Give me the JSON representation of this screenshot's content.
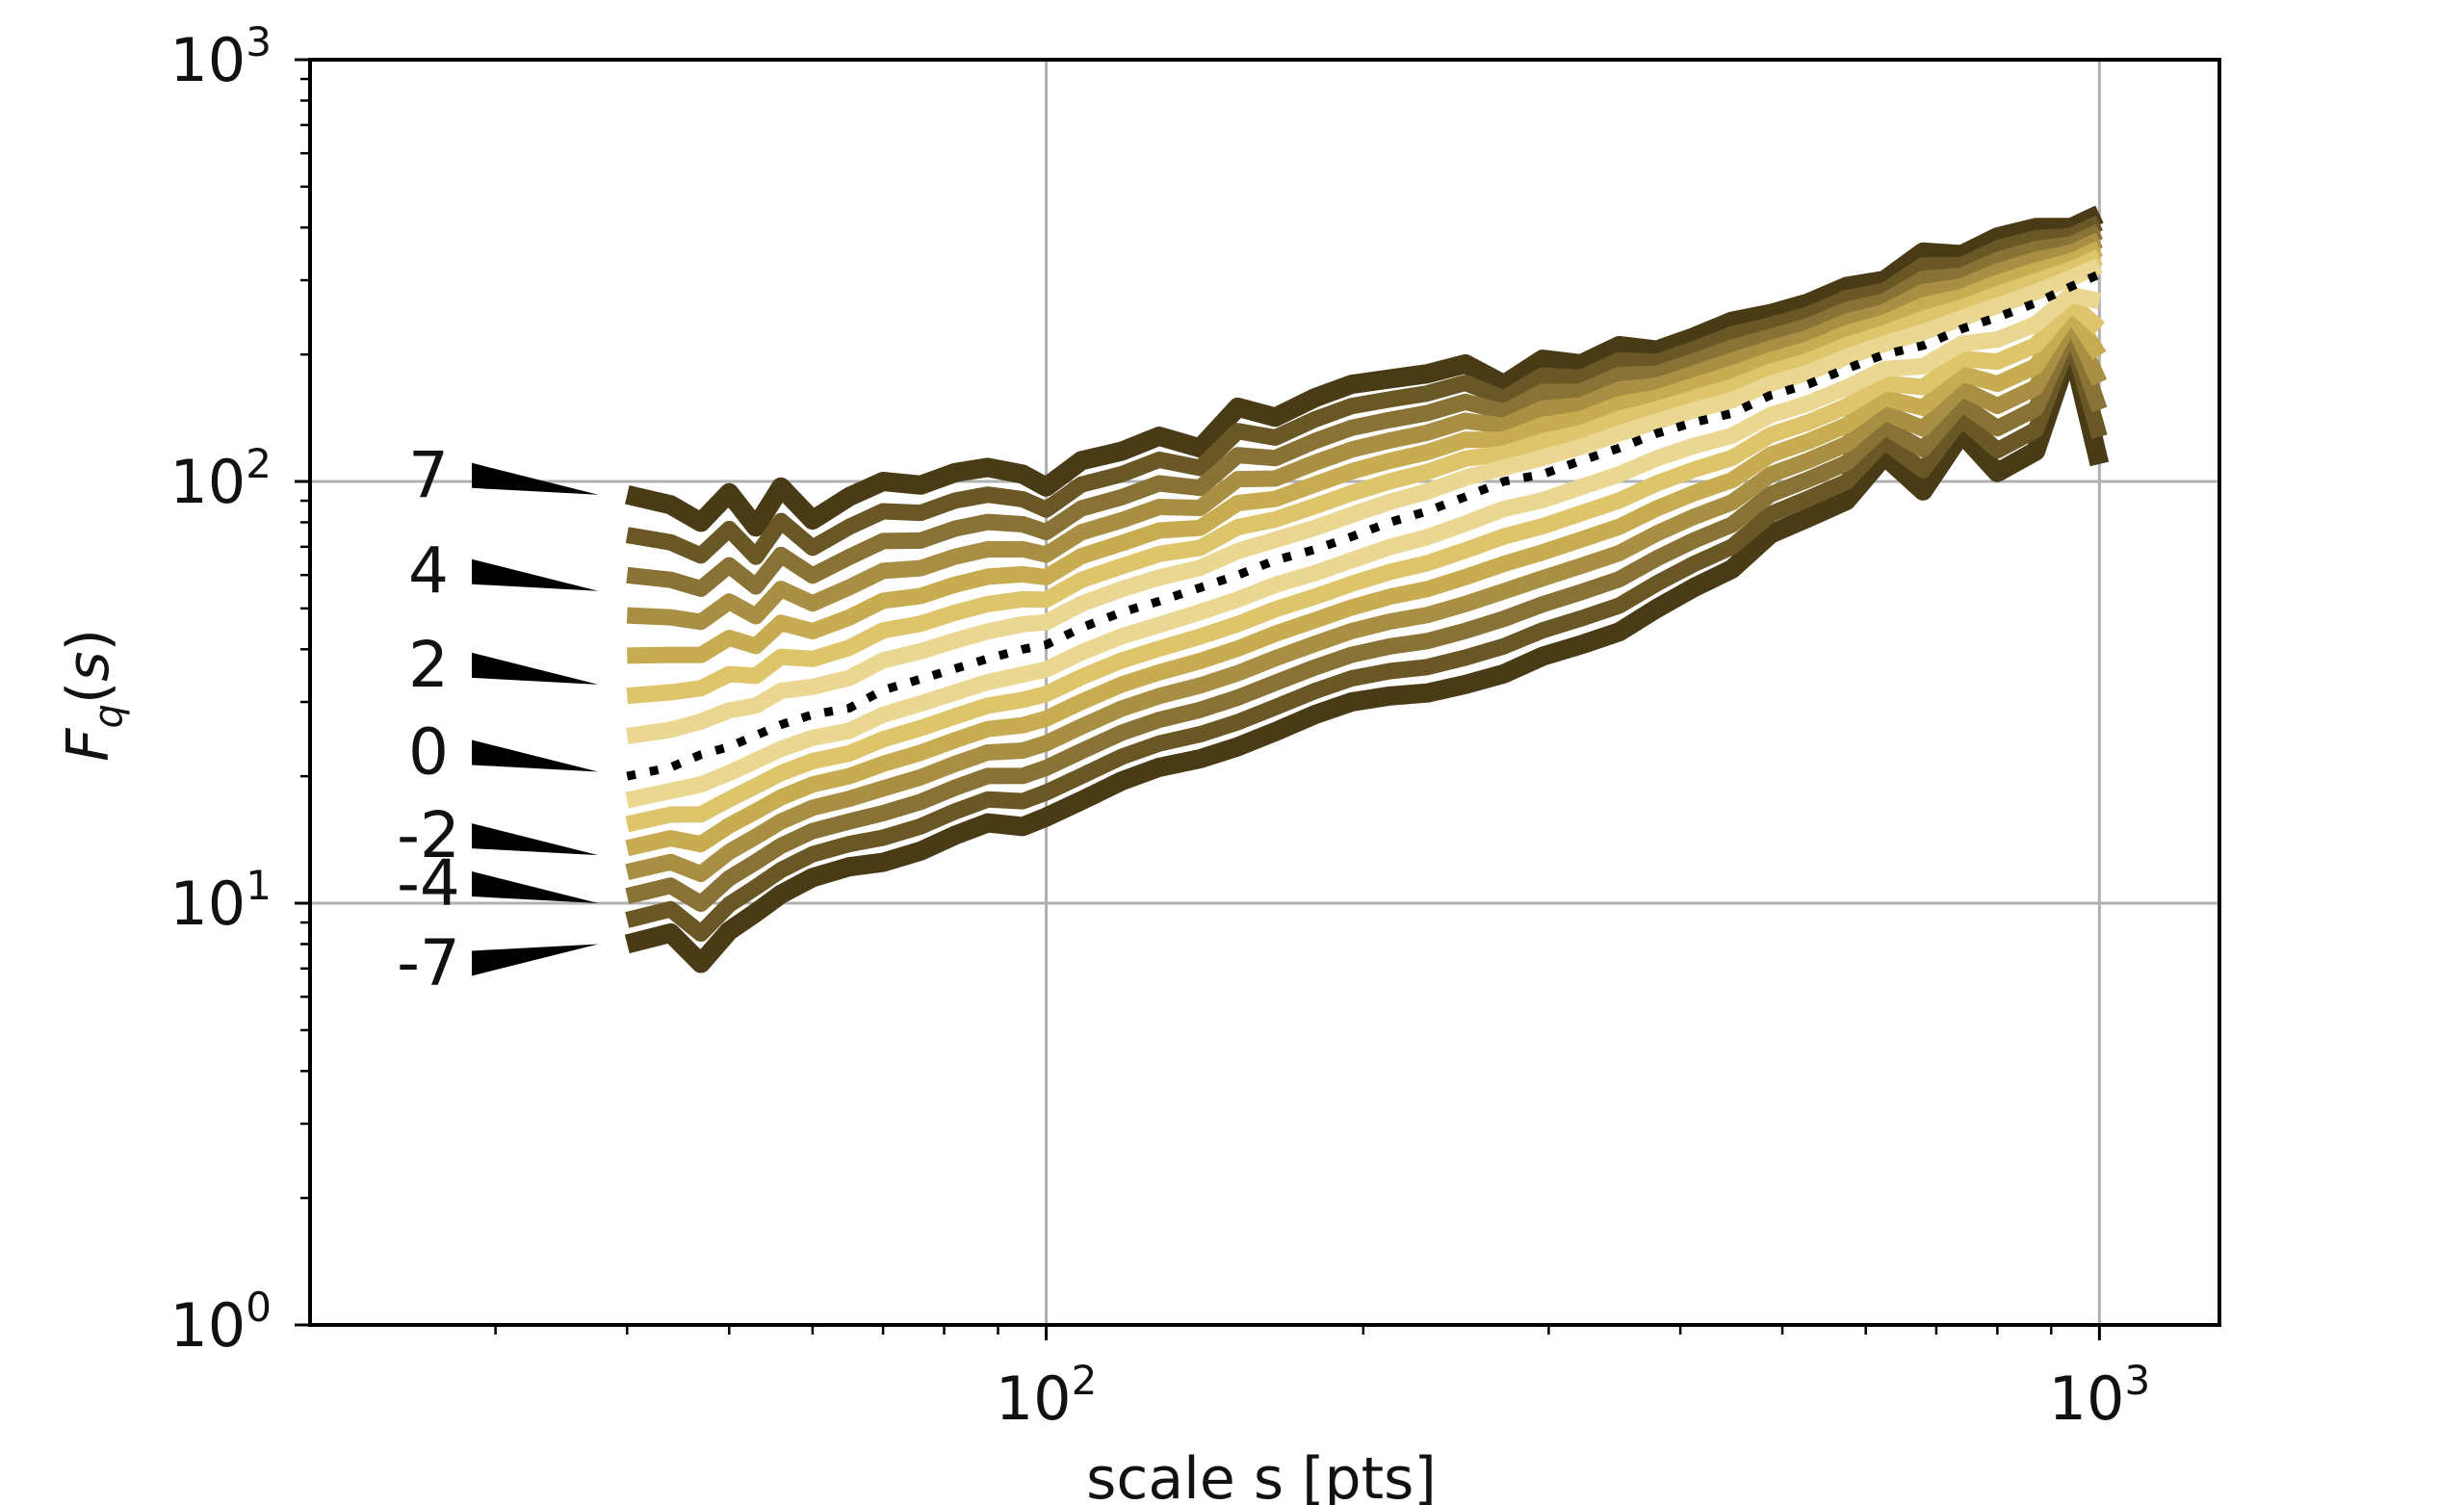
{
  "chart_data": {
    "type": "line",
    "title": "",
    "xlabel": "scale s [pts]",
    "ylabel": "F_q(s)",
    "x_scale": "log",
    "y_scale": "log",
    "xlim": [
      20,
      1300
    ],
    "ylim": [
      1,
      1000
    ],
    "grid": true,
    "x_ticks": [
      {
        "value": 100,
        "base": "10",
        "exp": "2"
      },
      {
        "value": 1000,
        "base": "10",
        "exp": "3"
      }
    ],
    "y_ticks": [
      {
        "value": 1,
        "base": "10",
        "exp": "0"
      },
      {
        "value": 10,
        "base": "10",
        "exp": "1"
      },
      {
        "value": 100,
        "base": "10",
        "exp": "2"
      },
      {
        "value": 1000,
        "base": "10",
        "exp": "3"
      }
    ],
    "q_annotations": [
      {
        "label": "7",
        "value": 93
      },
      {
        "label": "4",
        "value": 55
      },
      {
        "label": "2",
        "value": 33
      },
      {
        "label": "0",
        "value": 20.5
      },
      {
        "label": "-2",
        "value": 13
      },
      {
        "label": "-4",
        "value": 10
      },
      {
        "label": "-7",
        "value": 8
      }
    ],
    "x": [
      40,
      44,
      47,
      50,
      53,
      56,
      60,
      65,
      70,
      76,
      82,
      88,
      95,
      100,
      108,
      118,
      128,
      140,
      152,
      165,
      180,
      195,
      212,
      230,
      250,
      272,
      296,
      322,
      350,
      380,
      412,
      448,
      487,
      529,
      575,
      625,
      680,
      740,
      800,
      870,
      940,
      1000
    ],
    "q_top": [
      93,
      88,
      80,
      94,
      78,
      97,
      81,
      92,
      100,
      98,
      105,
      108,
      104,
      97,
      112,
      118,
      128,
      120,
      150,
      142,
      158,
      170,
      175,
      180,
      190,
      170,
      195,
      190,
      210,
      205,
      220,
      240,
      250,
      265,
      290,
      300,
      350,
      345,
      380,
      400,
      400,
      430
    ],
    "q_zero": [
      20,
      21,
      22.5,
      23.5,
      25,
      26.5,
      28,
      29,
      32,
      34,
      36,
      38,
      40,
      41,
      45,
      49,
      52,
      56,
      60,
      65,
      69,
      74,
      80,
      85,
      92,
      100,
      104,
      112,
      120,
      130,
      138,
      145,
      160,
      170,
      185,
      200,
      210,
      230,
      245,
      265,
      290,
      310
    ],
    "q_bottom": [
      8,
      8.5,
      7.2,
      8.6,
      9.5,
      10.5,
      11.5,
      12.2,
      12.5,
      13.3,
      14.5,
      15.5,
      15.2,
      16,
      17.5,
      19.5,
      21,
      22,
      23.5,
      25.5,
      28,
      30,
      31,
      31.5,
      33,
      35,
      38.5,
      41,
      44,
      50,
      56,
      62,
      75,
      82,
      90,
      115,
      95,
      130,
      105,
      118,
      210,
      110
    ],
    "series_q": [
      -7,
      -6,
      -5,
      -4,
      -3,
      -2,
      -1,
      0,
      1,
      2,
      3,
      4,
      5,
      6,
      7
    ],
    "colors": {
      "dark": "#4a3b17",
      "mid": "#8c7536",
      "light": "#d9bc5a",
      "pale": "#f5e9b8",
      "grid": "#b0b0b0",
      "axis": "#000000"
    }
  }
}
